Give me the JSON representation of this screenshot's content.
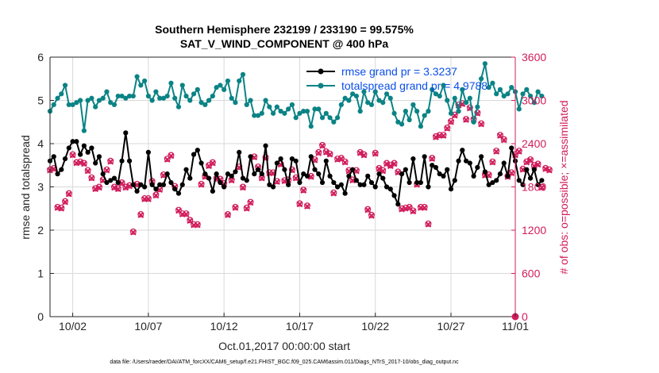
{
  "chart_data": {
    "type": "line",
    "title": "Southern Hemisphere 232199 / 233190 = 99.575%",
    "subtitle": "SAT_V_WIND_COMPONENT @ 400 hPa",
    "xlabel": "Oct.01,2017 00:00:00 start",
    "ylabel_left": "rmse and totalspread",
    "ylabel_right": "# of obs: o=possible; ×=assimilated",
    "footer": "data file: /Users/raeder/DAI/ATM_forcXX/CAM6_setup/f.e21.FHIST_BGC.f09_025.CAM6assim.011/Diags_NTrS_2017-10/obs_diag_output.nc",
    "x_range": [
      0.5,
      31.25
    ],
    "x_ticks": [
      2,
      7,
      12,
      17,
      22,
      27,
      32
    ],
    "x_tick_labels": [
      "10/02",
      "10/07",
      "10/12",
      "10/17",
      "10/22",
      "10/27",
      "11/01"
    ],
    "ylim_left": [
      0,
      6
    ],
    "y_ticks_left": [
      0,
      1,
      2,
      3,
      4,
      5,
      6
    ],
    "ylim_right": [
      0,
      3600
    ],
    "y_ticks_right": [
      0,
      600,
      1200,
      1800,
      2400,
      3000,
      3600
    ],
    "colors": {
      "rmse": "#000000",
      "spread": "#0b8385",
      "obs": "#d01c5b",
      "legend_text": "#0b4fe8",
      "grid": "#d9d9d9"
    },
    "series": [
      {
        "name": "rmse grand pr = 3.3237",
        "axis": "left",
        "x_start": 0.5,
        "x_step": 0.25,
        "values": [
          3.6,
          3.7,
          3.3,
          3.4,
          3.65,
          3.9,
          4.05,
          4.05,
          3.75,
          3.95,
          3.8,
          3.9,
          3.55,
          3.7,
          3.3,
          3.1,
          3.15,
          3.2,
          3.1,
          3.6,
          4.25,
          3.6,
          3.05,
          2.9,
          3.05,
          3.0,
          3.8,
          3.05,
          2.95,
          3.05,
          3.05,
          3.3,
          3.1,
          2.95,
          2.85,
          3.05,
          3.4,
          3.2,
          3.75,
          3.85,
          3.55,
          3.3,
          3.2,
          2.9,
          3.3,
          3.1,
          3.0,
          3.3,
          3.25,
          3.35,
          3.8,
          3.2,
          3.15,
          3.7,
          3.3,
          3.4,
          3.3,
          3.95,
          3.05,
          3.0,
          3.55,
          3.65,
          3.4,
          3.05,
          3.65,
          3.6,
          3.1,
          3.3,
          3.25,
          3.7,
          3.4,
          3.3,
          3.1,
          3.6,
          3.25,
          3.1,
          3.0,
          3.05,
          2.85,
          3.25,
          3.4,
          3.15,
          3.05,
          3.05,
          3.25,
          3.1,
          3.0,
          3.3,
          3.2,
          3.0,
          2.95,
          2.8,
          2.6,
          3.3,
          3.4,
          3.1,
          3.65,
          3.1,
          3.1,
          3.7,
          3.0,
          3.5,
          3.45,
          3.3,
          3.25,
          3.4,
          2.95,
          3.15,
          3.6,
          3.85,
          3.6,
          3.55,
          3.25,
          3.45,
          3.7,
          3.35,
          3.05,
          3.1,
          3.15,
          3.3,
          3.55,
          3.25,
          3.9,
          3.6,
          3.15,
          3.05,
          3.4,
          3.2,
          3.4,
          3.05,
          3.15
        ]
      },
      {
        "name": "totalspread grand pr = 4.9788",
        "axis": "left",
        "x_start": 0.5,
        "x_step": 0.25,
        "values": [
          4.75,
          4.9,
          5.05,
          5.15,
          5.35,
          4.9,
          4.9,
          4.95,
          5.0,
          4.3,
          5.0,
          5.05,
          4.85,
          5.0,
          5.05,
          5.2,
          4.95,
          4.9,
          5.1,
          5.1,
          5.05,
          5.1,
          5.1,
          5.55,
          5.35,
          5.45,
          5.1,
          5.0,
          5.2,
          5.05,
          5.05,
          5.1,
          5.4,
          5.05,
          4.85,
          5.35,
          5.1,
          5.0,
          5.15,
          5.25,
          4.95,
          4.9,
          5.0,
          5.1,
          5.3,
          5.35,
          5.25,
          5.45,
          5.05,
          4.95,
          5.45,
          5.6,
          4.9,
          5.0,
          4.65,
          4.65,
          4.7,
          5.0,
          4.85,
          4.7,
          4.85,
          4.75,
          4.7,
          4.8,
          4.9,
          4.6,
          4.7,
          4.75,
          4.75,
          4.4,
          4.8,
          4.8,
          4.6,
          4.7,
          4.6,
          4.5,
          4.6,
          4.9,
          5.05,
          5.0,
          5.15,
          5.1,
          4.75,
          5.2,
          4.95,
          4.9,
          5.2,
          5.0,
          4.95,
          5.15,
          5.05,
          4.7,
          4.5,
          4.45,
          4.75,
          4.55,
          4.9,
          4.75,
          4.4,
          4.65,
          4.75,
          5.25,
          5.15,
          5.1,
          5.35,
          5.0,
          4.7,
          5.05,
          4.75,
          5.25,
          4.95,
          5.05,
          4.5,
          4.85,
          5.5,
          5.85,
          5.3,
          5.4,
          5.15,
          5.25,
          5.1,
          5.15,
          5.3,
          5.2,
          4.8,
          5.15,
          5.25,
          5.1,
          4.95,
          5.2,
          5.1
        ]
      },
      {
        "name": "obs possible",
        "axis": "right",
        "marker": "o",
        "x_start": 0.5,
        "x_step": 0.25,
        "values": [
          2040,
          2060,
          1520,
          1510,
          1600,
          1710,
          2250,
          2140,
          2150,
          2130,
          2030,
          1930,
          1780,
          1800,
          1900,
          2040,
          2160,
          1800,
          1780,
          1860,
          1800,
          1820,
          1180,
          1840,
          1420,
          1640,
          1640,
          1880,
          1690,
          1770,
          1970,
          2190,
          2240,
          1810,
          1480,
          1430,
          1430,
          1340,
          1280,
          1280,
          1840,
          1950,
          2100,
          2140,
          1920,
          1910,
          1850,
          1420,
          1900,
          1520,
          2080,
          1800,
          1510,
          1590,
          2220,
          2080,
          1930,
          2210,
          2000,
          2000,
          1880,
          2120,
          1890,
          1900,
          2040,
          1930,
          1570,
          1760,
          1540,
          1950,
          2180,
          2280,
          2380,
          2290,
          2260,
          1720,
          2190,
          2200,
          2150,
          2030,
          1900,
          2030,
          2280,
          2250,
          1490,
          1410,
          2270,
          2060,
          2030,
          2130,
          2100,
          2130,
          2010,
          1500,
          1510,
          1520,
          1470,
          1840,
          1520,
          1520,
          1290,
          2200,
          2500,
          2520,
          2520,
          2620,
          2710,
          2800,
          2940,
          2960,
          2740,
          2900,
          2740,
          2830,
          2680,
          1970,
          1970,
          2150,
          2300,
          2520,
          2460,
          1950,
          2000,
          2250,
          2300,
          2050,
          2150,
          2180,
          2100,
          2120,
          1800,
          2060,
          2040
        ]
      },
      {
        "name": "obs assimilated",
        "axis": "right",
        "marker": "x",
        "x_start": 0.5,
        "x_step": 0.25,
        "values": [
          2030,
          2050,
          1510,
          1500,
          1590,
          1700,
          2240,
          2130,
          2140,
          2120,
          2020,
          1920,
          1770,
          1790,
          1890,
          2030,
          2150,
          1790,
          1770,
          1850,
          1790,
          1810,
          1170,
          1830,
          1410,
          1630,
          1630,
          1870,
          1680,
          1760,
          1960,
          2180,
          2230,
          1800,
          1470,
          1420,
          1420,
          1330,
          1270,
          1270,
          1830,
          1940,
          2090,
          2130,
          1910,
          1900,
          1840,
          1410,
          1890,
          1510,
          2070,
          1790,
          1500,
          1580,
          2210,
          2070,
          1920,
          2200,
          1990,
          1990,
          1870,
          2110,
          1880,
          1890,
          2030,
          1920,
          1560,
          1750,
          1530,
          1940,
          2170,
          2270,
          2370,
          2280,
          2250,
          1710,
          2180,
          2190,
          2140,
          2020,
          1890,
          2020,
          2270,
          2240,
          1480,
          1400,
          2260,
          2050,
          2020,
          2120,
          2090,
          2120,
          2000,
          1490,
          1500,
          1510,
          1460,
          1830,
          1510,
          1510,
          1280,
          2190,
          2490,
          2510,
          2510,
          2610,
          2700,
          2790,
          2930,
          2950,
          2730,
          2890,
          2730,
          2820,
          2670,
          1960,
          1960,
          2140,
          2290,
          2510,
          2450,
          1940,
          1990,
          2240,
          2290,
          2040,
          2140,
          2170,
          2090,
          2110,
          1790,
          2050,
          2030
        ]
      }
    ],
    "legend": [
      "rmse grand pr = 3.3237",
      "totalspread grand pr = 4.9788"
    ],
    "legend_position": "top-right",
    "grid": true
  }
}
